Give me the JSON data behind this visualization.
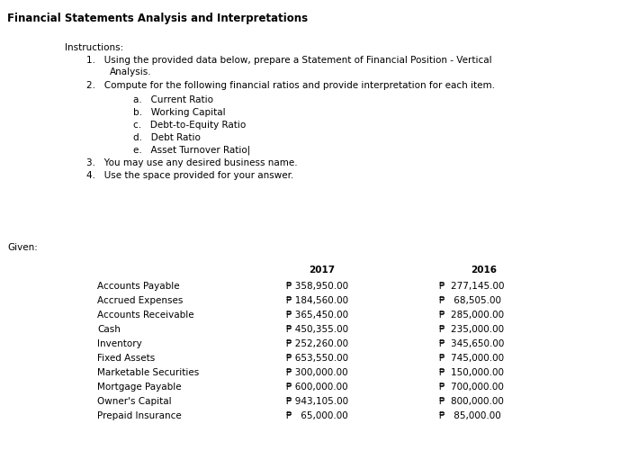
{
  "title": "Financial Statements Analysis and Interpretations",
  "background_color": "#ffffff",
  "instructions_header": "Instructions:",
  "instr1": "Using the provided data below, prepare a Statement of Financial Position - Vertical",
  "instr1b": "Analysis.",
  "instr2": "Compute for the following financial ratios and provide interpretation for each item.",
  "sub_items": [
    "a.   Current Ratio",
    "b.   Working Capital",
    "c.   Debt-to-Equity Ratio",
    "d.   Debt Ratio",
    "e.   Asset Turnover Ratio|"
  ],
  "instr3": "You may use any desired business name.",
  "instr4": "Use the space provided for your answer.",
  "given_label": "Given:",
  "col_2017": "2017",
  "col_2016": "2016",
  "rows": [
    {
      "label": "Accounts Payable",
      "v2017": "₱ 358,950.00",
      "v2016": "₱  277,145.00"
    },
    {
      "label": "Accrued Expenses",
      "v2017": "₱ 184,560.00",
      "v2016": "₱   68,505.00"
    },
    {
      "label": "Accounts Receivable",
      "v2017": "₱ 365,450.00",
      "v2016": "₱  285,000.00"
    },
    {
      "label": "Cash",
      "v2017": "₱ 450,355.00",
      "v2016": "₱  235,000.00"
    },
    {
      "label": "Inventory",
      "v2017": "₱ 252,260.00",
      "v2016": "₱  345,650.00"
    },
    {
      "label": "Fixed Assets",
      "v2017": "₱ 653,550.00",
      "v2016": "₱  745,000.00"
    },
    {
      "label": "Marketable Securities",
      "v2017": "₱ 300,000.00",
      "v2016": "₱  150,000.00"
    },
    {
      "label": "Mortgage Payable",
      "v2017": "₱ 600,000.00",
      "v2016": "₱  700,000.00"
    },
    {
      "label": "Owner's Capital",
      "v2017": "₱ 943,105.00",
      "v2016": "₱  800,000.00"
    },
    {
      "label": "Prepaid Insurance",
      "v2017": "₱   65,000.00",
      "v2016": "₱   85,000.00"
    }
  ],
  "fs_title": 8.5,
  "fs_body": 7.5,
  "fs_table": 7.5
}
